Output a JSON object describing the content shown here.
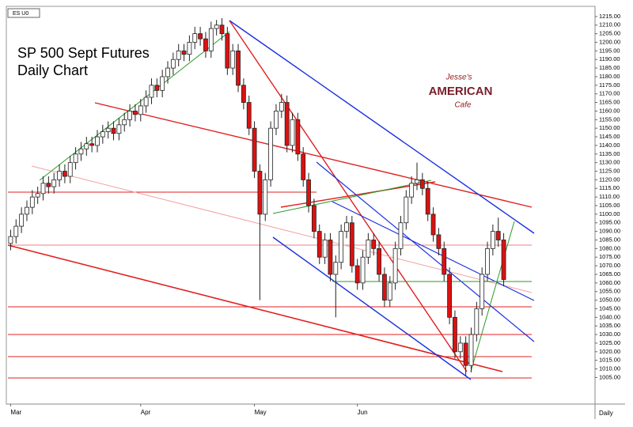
{
  "chart_data": {
    "type": "candlestick",
    "symbol": "ES U0",
    "title": "SP 500 Sept Futures",
    "subtitle": "Daily Chart",
    "x_label": "Daily",
    "logo": [
      "Jesse's",
      "AMERICAN",
      "Cafe"
    ],
    "up_color": "#ffffff",
    "down_color": "#dd1111",
    "categories": [
      "Mar",
      null,
      null,
      null,
      null,
      null,
      null,
      null,
      null,
      null,
      null,
      null,
      null,
      null,
      null,
      null,
      null,
      null,
      null,
      null,
      null,
      null,
      null,
      null,
      "Apr",
      null,
      null,
      null,
      null,
      null,
      null,
      null,
      null,
      null,
      null,
      null,
      null,
      null,
      null,
      null,
      null,
      null,
      null,
      null,
      null,
      "May",
      null,
      null,
      null,
      null,
      null,
      null,
      null,
      null,
      null,
      null,
      null,
      null,
      null,
      null,
      null,
      null,
      null,
      null,
      "Jun",
      null,
      null,
      null,
      null,
      null,
      null,
      null,
      null,
      null,
      null,
      null,
      null,
      null,
      null,
      null,
      null,
      null,
      null,
      null,
      null,
      null,
      null,
      null,
      null,
      null,
      null,
      null
    ],
    "open": [
      1083,
      1087,
      1093,
      1100,
      1104,
      1110,
      1112,
      1118,
      1116,
      1120,
      1125,
      1122,
      1130,
      1135,
      1138,
      1141,
      1140,
      1145,
      1148,
      1150,
      1147,
      1152,
      1155,
      1160,
      1158,
      1163,
      1168,
      1175,
      1172,
      1180,
      1185,
      1190,
      1195,
      1193,
      1200,
      1205,
      1202,
      1195,
      1208,
      1210,
      1205,
      1185,
      1195,
      1175,
      1165,
      1150,
      1125,
      1100,
      1120,
      1150,
      1160,
      1165,
      1140,
      1155,
      1135,
      1120,
      1105,
      1090,
      1075,
      1085,
      1065,
      1072,
      1090,
      1095,
      1070,
      1060,
      1075,
      1085,
      1080,
      1065,
      1050,
      1060,
      1080,
      1095,
      1110,
      1118,
      1120,
      1115,
      1100,
      1088,
      1080,
      1065,
      1040,
      1020,
      1025,
      1012,
      1030,
      1045,
      1065,
      1080,
      1090,
      1085
    ],
    "high": [
      1091,
      1097,
      1104,
      1108,
      1114,
      1116,
      1122,
      1122,
      1124,
      1129,
      1129,
      1134,
      1139,
      1142,
      1145,
      1145,
      1149,
      1152,
      1154,
      1154,
      1156,
      1159,
      1164,
      1164,
      1167,
      1172,
      1179,
      1179,
      1184,
      1189,
      1194,
      1199,
      1199,
      1204,
      1209,
      1209,
      1206,
      1212,
      1213,
      1214,
      1209,
      1199,
      1199,
      1179,
      1169,
      1154,
      1129,
      1124,
      1154,
      1164,
      1170,
      1169,
      1159,
      1159,
      1139,
      1124,
      1109,
      1094,
      1089,
      1089,
      1076,
      1094,
      1099,
      1099,
      1074,
      1079,
      1089,
      1089,
      1084,
      1069,
      1064,
      1084,
      1099,
      1114,
      1122,
      1130,
      1124,
      1119,
      1104,
      1092,
      1084,
      1069,
      1044,
      1029,
      1029,
      1034,
      1049,
      1069,
      1084,
      1094,
      1098,
      1089
    ],
    "low": [
      1079,
      1083,
      1089,
      1096,
      1100,
      1106,
      1108,
      1112,
      1112,
      1116,
      1118,
      1118,
      1126,
      1131,
      1134,
      1136,
      1136,
      1141,
      1144,
      1143,
      1143,
      1148,
      1151,
      1154,
      1154,
      1159,
      1164,
      1168,
      1168,
      1176,
      1181,
      1186,
      1189,
      1189,
      1196,
      1198,
      1191,
      1191,
      1204,
      1201,
      1181,
      1181,
      1171,
      1161,
      1146,
      1121,
      1050,
      1096,
      1116,
      1146,
      1156,
      1136,
      1136,
      1131,
      1116,
      1101,
      1086,
      1071,
      1071,
      1061,
      1040,
      1068,
      1086,
      1066,
      1056,
      1056,
      1071,
      1076,
      1061,
      1046,
      1046,
      1056,
      1076,
      1091,
      1106,
      1114,
      1111,
      1096,
      1084,
      1076,
      1061,
      1036,
      1016,
      1016,
      1006,
      1008,
      1026,
      1041,
      1061,
      1076,
      1081,
      1058
    ],
    "close": [
      1087,
      1093,
      1100,
      1104,
      1110,
      1112,
      1118,
      1116,
      1120,
      1125,
      1122,
      1130,
      1135,
      1138,
      1141,
      1140,
      1145,
      1148,
      1150,
      1147,
      1152,
      1155,
      1160,
      1158,
      1163,
      1168,
      1175,
      1172,
      1180,
      1185,
      1190,
      1195,
      1193,
      1200,
      1205,
      1202,
      1195,
      1208,
      1210,
      1205,
      1185,
      1195,
      1175,
      1165,
      1150,
      1125,
      1100,
      1120,
      1150,
      1160,
      1165,
      1140,
      1155,
      1135,
      1120,
      1105,
      1090,
      1075,
      1085,
      1065,
      1072,
      1090,
      1095,
      1070,
      1060,
      1075,
      1085,
      1080,
      1065,
      1050,
      1060,
      1080,
      1095,
      1110,
      1118,
      1120,
      1115,
      1100,
      1088,
      1080,
      1065,
      1040,
      1020,
      1025,
      1012,
      1030,
      1045,
      1065,
      1080,
      1090,
      1085,
      1062
    ],
    "ylim": [
      990,
      1220
    ],
    "yticks": [
      {
        "value": 1005,
        "label": "1005.00"
      },
      {
        "value": 1010,
        "label": "1010.00"
      },
      {
        "value": 1015,
        "label": "1015.00"
      },
      {
        "value": 1020,
        "label": "1020.00"
      },
      {
        "value": 1025,
        "label": "1025.00"
      },
      {
        "value": 1030,
        "label": "1030.00"
      },
      {
        "value": 1035,
        "label": "1035.00"
      },
      {
        "value": 1040,
        "label": "1040.00"
      },
      {
        "value": 1045,
        "label": "1045.00"
      },
      {
        "value": 1050,
        "label": "1050.00"
      },
      {
        "value": 1055,
        "label": "1055.00"
      },
      {
        "value": 1060,
        "label": "1060.00"
      },
      {
        "value": 1065,
        "label": "1065.00"
      },
      {
        "value": 1070,
        "label": "1070.00"
      },
      {
        "value": 1075,
        "label": "1075.00"
      },
      {
        "value": 1080,
        "label": "1080.00"
      },
      {
        "value": 1085,
        "label": "1085.00"
      },
      {
        "value": 1090,
        "label": "1090.00"
      },
      {
        "value": 1095,
        "label": "1095.00"
      },
      {
        "value": 1100,
        "label": "1100.00"
      },
      {
        "value": 1105,
        "label": "1105.00"
      },
      {
        "value": 1110,
        "label": "1110.00"
      },
      {
        "value": 1115,
        "label": "1115.00"
      },
      {
        "value": 1120,
        "label": "1120.00"
      },
      {
        "value": 1125,
        "label": "1125.00"
      },
      {
        "value": 1130,
        "label": "1130.00"
      },
      {
        "value": 1135,
        "label": "1135.00"
      },
      {
        "value": 1140,
        "label": "1140.00"
      },
      {
        "value": 1145,
        "label": "1145.00"
      },
      {
        "value": 1150,
        "label": "1150.00"
      },
      {
        "value": 1155,
        "label": "1155.00"
      },
      {
        "value": 1160,
        "label": "1160.00"
      },
      {
        "value": 1165,
        "label": "1165.00"
      },
      {
        "value": 1170,
        "label": "1170.00"
      },
      {
        "value": 1175,
        "label": "1175.00"
      },
      {
        "value": 1180,
        "label": "1180.00"
      },
      {
        "value": 1185,
        "label": "1185.00"
      },
      {
        "value": 1190,
        "label": "1190.00"
      },
      {
        "value": 1195,
        "label": "1195.00"
      },
      {
        "value": 1200,
        "label": "1200.00"
      },
      {
        "value": 1205,
        "label": "1205.00"
      },
      {
        "value": 1210,
        "label": "1210.00"
      },
      {
        "value": 1215,
        "label": "1215.00"
      }
    ],
    "grid": false
  }
}
